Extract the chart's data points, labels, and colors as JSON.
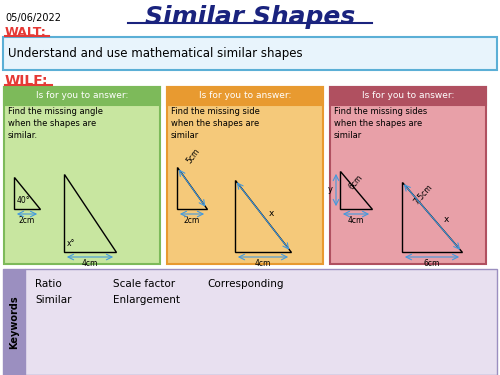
{
  "title": "Similar Shapes",
  "date": "05/06/2022",
  "walt_label": "WALT:",
  "walt_text": "Understand and use mathematical similar shapes",
  "wilf_label": "WILF:",
  "is_for_label": "Is for you to answer:",
  "box1_text": "Find the missing angle\nwhen the shapes are\nsimilar.",
  "box2_text": "Find the missing side\nwhen the shapes are\nsimilar",
  "box3_text": "Find the missing sides\nwhen the shapes are\nsimilar",
  "keywords_title": "Keywords",
  "kw_row1": [
    "Ratio",
    "Scale factor",
    "Corresponding"
  ],
  "kw_row2": [
    "Similar",
    "Enlargement"
  ],
  "bg_color": "#ffffff",
  "box1_header_bg": "#7dba5a",
  "box1_body_bg": "#c8e6a0",
  "box2_header_bg": "#e89a30",
  "box2_body_bg": "#f5c97a",
  "box3_header_bg": "#b05060",
  "box3_body_bg": "#e8a0a8",
  "keywords_header_bg": "#9b8fc0",
  "keywords_body_bg": "#e8e0f0",
  "walt_box_border": "#5bafd6",
  "walt_box_bg": "#e8f4fc",
  "title_color": "#1a237e",
  "red_color": "#e53935",
  "date_color": "#000000",
  "arrow_color": "#4499dd"
}
